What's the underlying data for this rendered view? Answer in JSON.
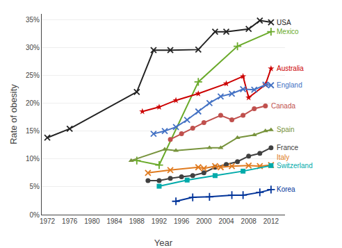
{
  "chart_data": {
    "type": "line",
    "xlabel": "Year",
    "ylabel": "Rate of obesity",
    "xlim": [
      1971,
      2014.5
    ],
    "ylim": [
      0,
      36
    ],
    "xticks": [
      1972,
      1976,
      1980,
      1984,
      1988,
      1992,
      1996,
      2000,
      2004,
      2008,
      2012
    ],
    "yticks": [
      {
        "value": 0,
        "label": "0%"
      },
      {
        "value": 5,
        "label": "5%"
      },
      {
        "value": 10,
        "label": "10%"
      },
      {
        "value": 15,
        "label": "15%"
      },
      {
        "value": 20,
        "label": "20%"
      },
      {
        "value": 25,
        "label": "25%"
      },
      {
        "value": 30,
        "label": "30%"
      },
      {
        "value": 35,
        "label": "35%"
      }
    ],
    "grid": "y",
    "series": [
      {
        "name": "USA",
        "color": "#222222",
        "marker": "x",
        "x": [
          1972,
          1976,
          1988,
          1991,
          1994,
          1999,
          2002,
          2004,
          2008,
          2010,
          2012
        ],
        "values": [
          13.8,
          15.4,
          22.0,
          29.5,
          29.5,
          29.6,
          32.8,
          32.8,
          33.3,
          34.8,
          34.5
        ]
      },
      {
        "name": "Mexico",
        "color": "#6aaa2a",
        "marker": "+",
        "x": [
          1988,
          1992,
          1999,
          2006,
          2012
        ],
        "values": [
          9.7,
          8.9,
          23.8,
          30.2,
          32.8
        ]
      },
      {
        "name": "Australia",
        "color": "#cc0000",
        "marker": "*",
        "x": [
          1989,
          1992,
          1995,
          1999,
          2004,
          2007,
          2008,
          2011,
          2012
        ],
        "values": [
          18.5,
          19.3,
          20.5,
          21.7,
          23.5,
          24.8,
          21.0,
          23.3,
          26.2
        ]
      },
      {
        "name": "England",
        "color": "#4472c4",
        "marker": "x",
        "x": [
          1991,
          1993,
          1995,
          1997,
          1999,
          2001,
          2003,
          2005,
          2007,
          2009,
          2011,
          2012
        ],
        "values": [
          14.5,
          15.0,
          15.7,
          17.0,
          18.5,
          20.0,
          21.2,
          21.7,
          22.5,
          22.4,
          23.3,
          23.2
        ]
      },
      {
        "name": "Canada",
        "color": "#c0504d",
        "marker": "o",
        "x": [
          1994,
          1996,
          1998,
          2000,
          2003,
          2005,
          2007,
          2009,
          2011
        ],
        "values": [
          13.5,
          14.5,
          15.5,
          16.5,
          17.8,
          17.0,
          17.8,
          19.0,
          19.5
        ]
      },
      {
        "name": "Spain",
        "color": "#77933c",
        "marker": "^",
        "x": [
          1987,
          1993,
          1995,
          2001,
          2003,
          2006,
          2009,
          2011,
          2012
        ],
        "values": [
          9.7,
          11.7,
          11.5,
          12.0,
          12.0,
          13.8,
          14.3,
          15.0,
          15.2
        ]
      },
      {
        "name": "France",
        "color": "#404040",
        "marker": "o",
        "x": [
          1990,
          1992,
          1994,
          1996,
          1998,
          2000,
          2002,
          2004,
          2006,
          2008,
          2010,
          2012
        ],
        "values": [
          6.1,
          6.1,
          6.5,
          6.8,
          7.0,
          7.5,
          8.5,
          9.0,
          9.5,
          10.5,
          11.0,
          12.0
        ]
      },
      {
        "name": "Italy",
        "color": "#e07b20",
        "marker": "x",
        "x": [
          1990,
          1994,
          1999,
          2000,
          2002,
          2003,
          2005,
          2008,
          2010,
          2012
        ],
        "values": [
          7.5,
          8.0,
          8.5,
          8.3,
          8.7,
          8.5,
          8.7,
          8.8,
          8.7,
          8.9
        ]
      },
      {
        "name": "Switzerland",
        "color": "#00aaaa",
        "marker": "s",
        "x": [
          1992,
          1997,
          2002,
          2007,
          2012
        ],
        "values": [
          5.1,
          6.2,
          7.0,
          7.8,
          8.8
        ]
      },
      {
        "name": "Korea",
        "color": "#003399",
        "marker": "+",
        "x": [
          1995,
          1998,
          2001,
          2005,
          2007,
          2010,
          2012
        ],
        "values": [
          2.4,
          3.1,
          3.2,
          3.5,
          3.5,
          4.0,
          4.5
        ]
      }
    ]
  }
}
